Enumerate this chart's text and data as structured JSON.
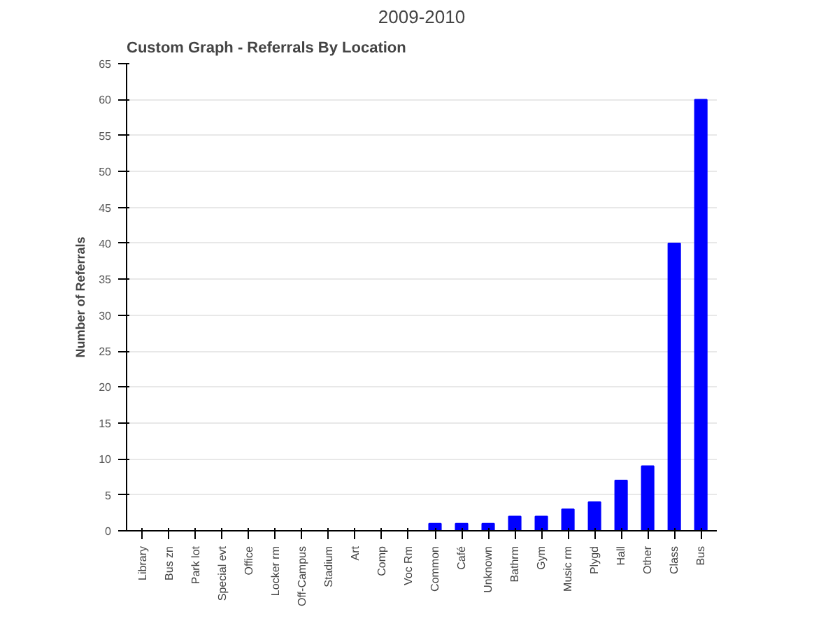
{
  "chart_data": {
    "type": "bar",
    "title": "Custom Graph - Referrals By Location",
    "subtitle": "2009-2010",
    "ylabel": "Number of Referrals",
    "categories": [
      "Library",
      "Bus zn",
      "Park lot",
      "Special evt",
      "Office",
      "Locker rm",
      "Off-Campus",
      "Stadium",
      "Art",
      "Comp",
      "Voc Rm",
      "Common",
      "Café",
      "Unknown",
      "Bathrm",
      "Gym",
      "Music rm",
      "Plygd",
      "Hall",
      "Other",
      "Class",
      "Bus"
    ],
    "values": [
      0,
      0,
      0,
      0,
      0,
      0,
      0,
      0,
      0,
      0,
      0,
      1,
      1,
      1,
      2,
      2,
      3,
      4,
      7,
      9,
      40,
      60
    ],
    "color": "#0000ff",
    "ylim": [
      0,
      65
    ],
    "yticks": [
      0,
      5,
      10,
      15,
      20,
      25,
      30,
      35,
      40,
      45,
      50,
      55,
      60,
      65
    ],
    "grid": "y"
  }
}
